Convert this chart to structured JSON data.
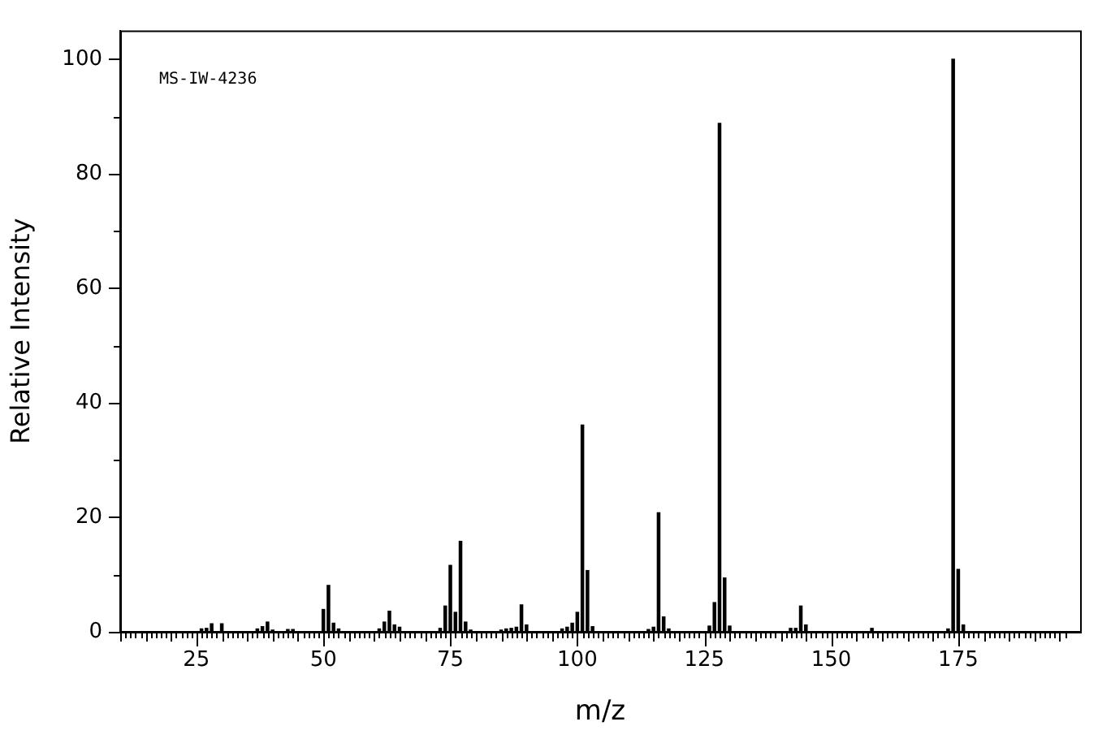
{
  "chart_data": {
    "type": "bar",
    "xlabel": "m/z",
    "ylabel": "Relative Intensity",
    "annotations": [
      "MS-IW-4236"
    ],
    "color": "#000000",
    "grid": false,
    "x": [
      26,
      27,
      28,
      30,
      37,
      38,
      39,
      40,
      43,
      44,
      50,
      51,
      52,
      53,
      61,
      62,
      63,
      64,
      65,
      73,
      74,
      75,
      76,
      77,
      78,
      79,
      85,
      86,
      87,
      88,
      89,
      90,
      97,
      98,
      99,
      100,
      101,
      102,
      103,
      114,
      115,
      116,
      117,
      118,
      126,
      127,
      128,
      129,
      130,
      142,
      143,
      144,
      145,
      158,
      173,
      174,
      175,
      176
    ],
    "values": [
      0.5,
      0.6,
      1.4,
      1.4,
      0.5,
      0.9,
      1.7,
      0.3,
      0.4,
      0.4,
      3.9,
      8.1,
      1.5,
      0.5,
      0.5,
      1.7,
      3.6,
      1.2,
      0.8,
      0.6,
      4.5,
      11.6,
      3.4,
      15.8,
      1.7,
      0.3,
      0.3,
      0.5,
      0.6,
      0.8,
      4.7,
      1.2,
      0.5,
      0.8,
      1.5,
      3.4,
      36.1,
      10.7,
      0.9,
      0.4,
      0.8,
      20.8,
      2.6,
      0.5,
      1,
      5.1,
      88.8,
      9.4,
      1,
      0.6,
      0.6,
      4.5,
      1.2,
      0.6,
      0.5,
      100,
      10.9,
      1.2
    ],
    "xlim": [
      10,
      199
    ],
    "ylim": [
      0,
      105
    ],
    "yticks": [
      0,
      {
        "value": 10,
        "label": null
      },
      20,
      {
        "value": 30,
        "label": null
      },
      40,
      {
        "value": 50,
        "label": null
      },
      60,
      {
        "value": 70,
        "label": null
      },
      80,
      {
        "value": 90,
        "label": null
      },
      100
    ],
    "xticks": [
      {
        "value": 10,
        "label": null
      },
      {
        "value": 11,
        "label": null
      },
      {
        "value": 12,
        "label": null
      },
      {
        "value": 13,
        "label": null
      },
      {
        "value": 14,
        "label": null
      },
      {
        "value": 15,
        "label": null
      },
      {
        "value": 16,
        "label": null
      },
      {
        "value": 17,
        "label": null
      },
      {
        "value": 18,
        "label": null
      },
      {
        "value": 19,
        "label": null
      },
      {
        "value": 20,
        "label": null
      },
      {
        "value": 21,
        "label": null
      },
      {
        "value": 22,
        "label": null
      },
      {
        "value": 23,
        "label": null
      },
      {
        "value": 24,
        "label": null
      },
      25,
      {
        "value": 26,
        "label": null
      },
      {
        "value": 27,
        "label": null
      },
      {
        "value": 28,
        "label": null
      },
      {
        "value": 29,
        "label": null
      },
      {
        "value": 30,
        "label": null
      },
      {
        "value": 31,
        "label": null
      },
      {
        "value": 32,
        "label": null
      },
      {
        "value": 33,
        "label": null
      },
      {
        "value": 34,
        "label": null
      },
      {
        "value": 35,
        "label": null
      },
      {
        "value": 36,
        "label": null
      },
      {
        "value": 37,
        "label": null
      },
      {
        "value": 38,
        "label": null
      },
      {
        "value": 39,
        "label": null
      },
      {
        "value": 40,
        "label": null
      },
      {
        "value": 41,
        "label": null
      },
      {
        "value": 42,
        "label": null
      },
      {
        "value": 43,
        "label": null
      },
      {
        "value": 44,
        "label": null
      },
      {
        "value": 45,
        "label": null
      },
      {
        "value": 46,
        "label": null
      },
      {
        "value": 47,
        "label": null
      },
      {
        "value": 48,
        "label": null
      },
      {
        "value": 49,
        "label": null
      },
      50,
      {
        "value": 51,
        "label": null
      },
      {
        "value": 52,
        "label": null
      },
      {
        "value": 53,
        "label": null
      },
      {
        "value": 54,
        "label": null
      },
      {
        "value": 55,
        "label": null
      },
      {
        "value": 56,
        "label": null
      },
      {
        "value": 57,
        "label": null
      },
      {
        "value": 58,
        "label": null
      },
      {
        "value": 59,
        "label": null
      },
      {
        "value": 60,
        "label": null
      },
      {
        "value": 61,
        "label": null
      },
      {
        "value": 62,
        "label": null
      },
      {
        "value": 63,
        "label": null
      },
      {
        "value": 64,
        "label": null
      },
      {
        "value": 65,
        "label": null
      },
      {
        "value": 66,
        "label": null
      },
      {
        "value": 67,
        "label": null
      },
      {
        "value": 68,
        "label": null
      },
      {
        "value": 69,
        "label": null
      },
      {
        "value": 70,
        "label": null
      },
      {
        "value": 71,
        "label": null
      },
      {
        "value": 72,
        "label": null
      },
      {
        "value": 73,
        "label": null
      },
      {
        "value": 74,
        "label": null
      },
      75,
      {
        "value": 76,
        "label": null
      },
      {
        "value": 77,
        "label": null
      },
      {
        "value": 78,
        "label": null
      },
      {
        "value": 79,
        "label": null
      },
      {
        "value": 80,
        "label": null
      },
      {
        "value": 81,
        "label": null
      },
      {
        "value": 82,
        "label": null
      },
      {
        "value": 83,
        "label": null
      },
      {
        "value": 84,
        "label": null
      },
      {
        "value": 85,
        "label": null
      },
      {
        "value": 86,
        "label": null
      },
      {
        "value": 87,
        "label": null
      },
      {
        "value": 88,
        "label": null
      },
      {
        "value": 89,
        "label": null
      },
      {
        "value": 90,
        "label": null
      },
      {
        "value": 91,
        "label": null
      },
      {
        "value": 92,
        "label": null
      },
      {
        "value": 93,
        "label": null
      },
      {
        "value": 94,
        "label": null
      },
      {
        "value": 95,
        "label": null
      },
      {
        "value": 96,
        "label": null
      },
      {
        "value": 97,
        "label": null
      },
      {
        "value": 98,
        "label": null
      },
      {
        "value": 99,
        "label": null
      },
      100,
      {
        "value": 101,
        "label": null
      },
      {
        "value": 102,
        "label": null
      },
      {
        "value": 103,
        "label": null
      },
      {
        "value": 104,
        "label": null
      },
      {
        "value": 105,
        "label": null
      },
      {
        "value": 106,
        "label": null
      },
      {
        "value": 107,
        "label": null
      },
      {
        "value": 108,
        "label": null
      },
      {
        "value": 109,
        "label": null
      },
      {
        "value": 110,
        "label": null
      },
      {
        "value": 111,
        "label": null
      },
      {
        "value": 112,
        "label": null
      },
      {
        "value": 113,
        "label": null
      },
      {
        "value": 114,
        "label": null
      },
      {
        "value": 115,
        "label": null
      },
      {
        "value": 116,
        "label": null
      },
      {
        "value": 117,
        "label": null
      },
      {
        "value": 118,
        "label": null
      },
      {
        "value": 119,
        "label": null
      },
      {
        "value": 120,
        "label": null
      },
      {
        "value": 121,
        "label": null
      },
      {
        "value": 122,
        "label": null
      },
      {
        "value": 123,
        "label": null
      },
      {
        "value": 124,
        "label": null
      },
      125,
      {
        "value": 126,
        "label": null
      },
      {
        "value": 127,
        "label": null
      },
      {
        "value": 128,
        "label": null
      },
      {
        "value": 129,
        "label": null
      },
      {
        "value": 130,
        "label": null
      },
      {
        "value": 131,
        "label": null
      },
      {
        "value": 132,
        "label": null
      },
      {
        "value": 133,
        "label": null
      },
      {
        "value": 134,
        "label": null
      },
      {
        "value": 135,
        "label": null
      },
      {
        "value": 136,
        "label": null
      },
      {
        "value": 137,
        "label": null
      },
      {
        "value": 138,
        "label": null
      },
      {
        "value": 139,
        "label": null
      },
      {
        "value": 140,
        "label": null
      },
      {
        "value": 141,
        "label": null
      },
      {
        "value": 142,
        "label": null
      },
      {
        "value": 143,
        "label": null
      },
      {
        "value": 144,
        "label": null
      },
      {
        "value": 145,
        "label": null
      },
      {
        "value": 146,
        "label": null
      },
      {
        "value": 147,
        "label": null
      },
      {
        "value": 148,
        "label": null
      },
      {
        "value": 149,
        "label": null
      },
      150,
      {
        "value": 151,
        "label": null
      },
      {
        "value": 152,
        "label": null
      },
      {
        "value": 153,
        "label": null
      },
      {
        "value": 154,
        "label": null
      },
      {
        "value": 155,
        "label": null
      },
      {
        "value": 156,
        "label": null
      },
      {
        "value": 157,
        "label": null
      },
      {
        "value": 158,
        "label": null
      },
      {
        "value": 159,
        "label": null
      },
      {
        "value": 160,
        "label": null
      },
      {
        "value": 161,
        "label": null
      },
      {
        "value": 162,
        "label": null
      },
      {
        "value": 163,
        "label": null
      },
      {
        "value": 164,
        "label": null
      },
      {
        "value": 165,
        "label": null
      },
      {
        "value": 166,
        "label": null
      },
      {
        "value": 167,
        "label": null
      },
      {
        "value": 168,
        "label": null
      },
      {
        "value": 169,
        "label": null
      },
      {
        "value": 170,
        "label": null
      },
      {
        "value": 171,
        "label": null
      },
      {
        "value": 172,
        "label": null
      },
      {
        "value": 173,
        "label": null
      },
      {
        "value": 174,
        "label": null
      },
      175,
      {
        "value": 176,
        "label": null
      },
      {
        "value": 177,
        "label": null
      },
      {
        "value": 178,
        "label": null
      },
      {
        "value": 179,
        "label": null
      },
      {
        "value": 180,
        "label": null
      },
      {
        "value": 181,
        "label": null
      },
      {
        "value": 182,
        "label": null
      },
      {
        "value": 183,
        "label": null
      },
      {
        "value": 184,
        "label": null
      },
      {
        "value": 185,
        "label": null
      },
      {
        "value": 186,
        "label": null
      },
      {
        "value": 187,
        "label": null
      },
      {
        "value": 188,
        "label": null
      },
      {
        "value": 189,
        "label": null
      },
      {
        "value": 190,
        "label": null
      },
      {
        "value": 191,
        "label": null
      },
      {
        "value": 192,
        "label": null
      },
      {
        "value": 193,
        "label": null
      },
      {
        "value": 194,
        "label": null
      },
      {
        "value": 195,
        "label": null
      },
      {
        "value": 196,
        "label": null
      }
    ]
  }
}
